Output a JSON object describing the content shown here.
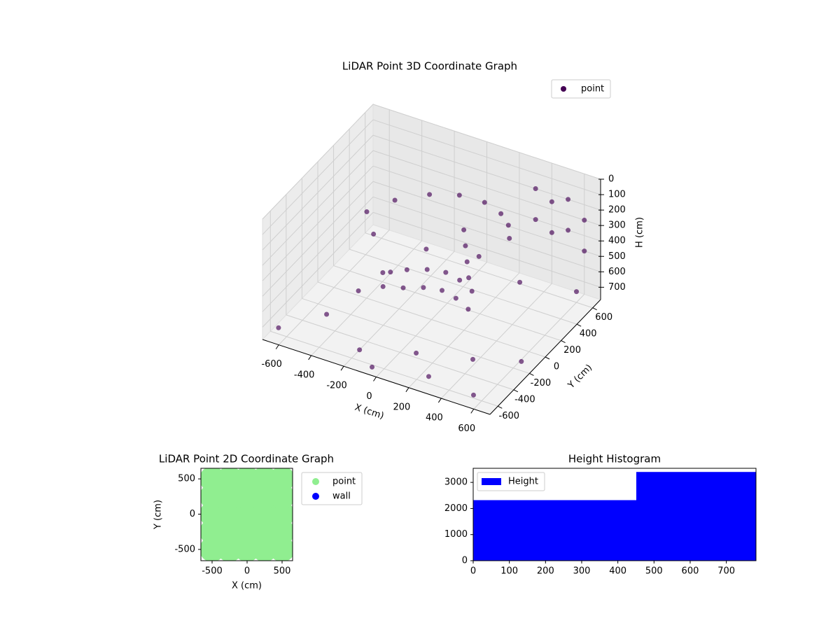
{
  "chart_data": [
    {
      "type": "scatter3d",
      "title": "LiDAR Point 3D Coordinate Graph",
      "x_label": "X (cm)",
      "y_label": "Y (cm)",
      "z_label": "H (cm)",
      "xlim": [
        -700,
        700
      ],
      "ylim": [
        -700,
        700
      ],
      "zlim": [
        0,
        780
      ],
      "xticks": [
        -600,
        -400,
        -200,
        0,
        200,
        400,
        600
      ],
      "yticks": [
        -600,
        -400,
        -200,
        0,
        200,
        400,
        600
      ],
      "zticks": [
        0,
        100,
        200,
        300,
        400,
        500,
        600,
        700
      ],
      "grid": true,
      "legend": "upper right",
      "series": [
        {
          "name": "point",
          "color": "#440154",
          "x": [
            -350,
            -250,
            -100,
            50,
            200,
            320,
            400,
            450,
            -300,
            -200,
            -100,
            0,
            100,
            200,
            -250,
            -150,
            -50,
            50,
            150,
            250,
            150,
            160,
            170,
            180,
            -650,
            -500,
            -350,
            -200,
            -50,
            100,
            250,
            400,
            550,
            650,
            -600,
            -300,
            0,
            300,
            600,
            -450,
            300,
            300,
            400,
            400,
            500,
            500,
            600,
            600
          ],
          "y": [
            -100,
            50,
            180,
            250,
            260,
            220,
            150,
            60,
            0,
            100,
            150,
            180,
            150,
            100,
            -100,
            -50,
            0,
            30,
            0,
            -50,
            100,
            100,
            100,
            100,
            -600,
            -300,
            200,
            -500,
            -650,
            -400,
            -550,
            -300,
            -600,
            -200,
            500,
            550,
            600,
            500,
            600,
            0,
            700,
            700,
            700,
            700,
            700,
            700,
            700,
            700
          ],
          "z": [
            150,
            120,
            100,
            90,
            90,
            100,
            110,
            130,
            580,
            580,
            570,
            570,
            570,
            580,
            600,
            600,
            590,
            590,
            590,
            600,
            200,
            300,
            400,
            500,
            740,
            760,
            700,
            780,
            760,
            750,
            770,
            740,
            760,
            720,
            700,
            720,
            690,
            700,
            710,
            750,
            200,
            400,
            250,
            450,
            200,
            400,
            300,
            500
          ]
        }
      ]
    },
    {
      "type": "scatter",
      "title": "LiDAR Point 2D Coordinate Graph",
      "x_label": "X (cm)",
      "y_label": "Y (cm)",
      "xlim": [
        -660,
        650
      ],
      "ylim": [
        -660,
        650
      ],
      "xticks": [
        -500,
        0,
        500
      ],
      "yticks": [
        -500,
        0,
        500
      ],
      "legend": "outside right",
      "series": [
        {
          "name": "point",
          "color": "#90ee90",
          "x": [
            -500,
            -250,
            0,
            250,
            500,
            -500,
            -250,
            0,
            250,
            500,
            -500,
            -250,
            0,
            250,
            500,
            -500,
            -250,
            0,
            250,
            500,
            -500,
            -250,
            0,
            250,
            500
          ],
          "y": [
            -500,
            -500,
            -500,
            -500,
            -500,
            -250,
            -250,
            -250,
            -250,
            -250,
            0,
            0,
            0,
            0,
            0,
            250,
            250,
            250,
            250,
            250,
            500,
            500,
            500,
            500,
            500
          ]
        },
        {
          "name": "wall",
          "color": "#0000ff",
          "x": [],
          "y": []
        }
      ]
    },
    {
      "type": "histogram",
      "title": "Height Histogram",
      "bins": [
        0,
        451,
        782
      ],
      "xlim": [
        0,
        782
      ],
      "ylim": [
        0,
        3540
      ],
      "xticks": [
        0,
        100,
        200,
        300,
        400,
        500,
        600,
        700
      ],
      "yticks": [
        0,
        1000,
        2000,
        3000
      ],
      "legend": "upper left",
      "series": [
        {
          "name": "Height",
          "color": "#0000ff",
          "values": [
            2320,
            3400
          ]
        }
      ]
    }
  ]
}
